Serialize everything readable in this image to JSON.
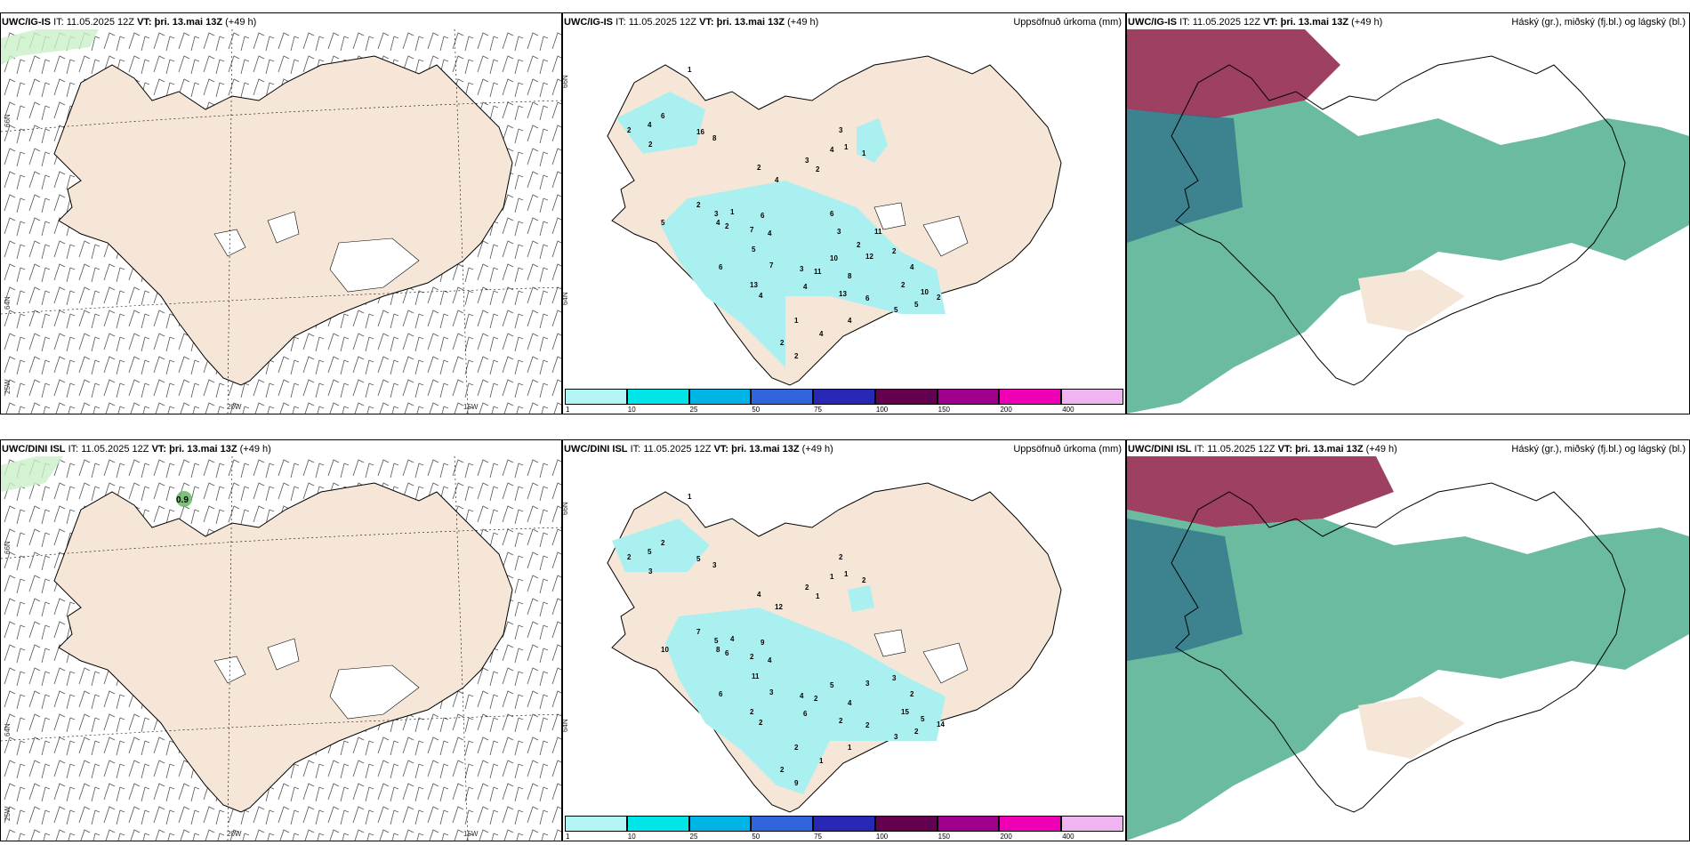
{
  "rows": [
    {
      "model": "UWC/IG-IS",
      "it_label": "IT:",
      "it_value": "11.05.2025 12Z",
      "vt_label": "VT:",
      "vt_value": "þri. 13.mai 13Z",
      "lead": "(+49 h)",
      "wind_axis": {
        "lat_top": "66N",
        "lat_bottom": "64N",
        "lon_left": "25W",
        "lon_mid": "20W",
        "lon_right": "15W"
      },
      "precip_axis": {
        "lat_top": "66N",
        "lat_bottom": "64N"
      },
      "precip_numbers": [
        "1",
        "2",
        "6",
        "4",
        "16",
        "8",
        "2",
        "2",
        "4",
        "3",
        "1",
        "3",
        "4",
        "2",
        "1",
        "3",
        "2",
        "4",
        "2",
        "1",
        "7",
        "6",
        "4",
        "5",
        "5",
        "6",
        "7",
        "3",
        "13",
        "4",
        "10",
        "11",
        "4",
        "13",
        "12",
        "8",
        "2",
        "2",
        "6",
        "4",
        "1",
        "4",
        "2",
        "2",
        "5",
        "5",
        "10",
        "2",
        "4",
        "11",
        "3",
        "2",
        "6"
      ],
      "wind_value": ""
    },
    {
      "model": "UWC/DINI ISL",
      "it_label": "IT:",
      "it_value": "11.05.2025 12Z",
      "vt_label": "VT:",
      "vt_value": "þri. 13.mai 13Z",
      "lead": "(+49 h)",
      "wind_axis": {
        "lat_top": "66N",
        "lat_bottom": "64N",
        "lon_left": "25W",
        "lon_mid": "20W",
        "lon_right": "15W"
      },
      "precip_axis": {
        "lat_top": "66N",
        "lat_bottom": "64N"
      },
      "precip_numbers": [
        "1",
        "2",
        "2",
        "5",
        "5",
        "3",
        "3",
        "4",
        "12",
        "2",
        "1",
        "2",
        "1",
        "1",
        "2",
        "5",
        "7",
        "8",
        "6",
        "4",
        "2",
        "9",
        "4",
        "10",
        "11",
        "6",
        "3",
        "4",
        "2",
        "2",
        "5",
        "2",
        "6",
        "2",
        "3",
        "4",
        "15",
        "3",
        "2",
        "1",
        "2",
        "1",
        "2",
        "9",
        "3",
        "2",
        "5",
        "14",
        "2"
      ],
      "wind_value": "0.9"
    }
  ],
  "precip_title": "Uppsöfnuð úrkoma (mm)",
  "cloud_title": "Háský (gr.), miðský (fj.bl.) og lágský (bl.)",
  "colorbar": {
    "ticks": [
      "1",
      "10",
      "25",
      "50",
      "75",
      "100",
      "150",
      "200",
      "400"
    ],
    "colors": [
      "#b2f5f5",
      "#00e6e6",
      "#00b4e6",
      "#3264dc",
      "#2828b4",
      "#640050",
      "#a0008c",
      "#f000b4",
      "#f0b4f0"
    ]
  },
  "colors": {
    "land": "#f5e6d7",
    "precip_light": "#aaf0f0",
    "cloud_low": "#5ab496",
    "cloud_high": "#8c1e46"
  }
}
